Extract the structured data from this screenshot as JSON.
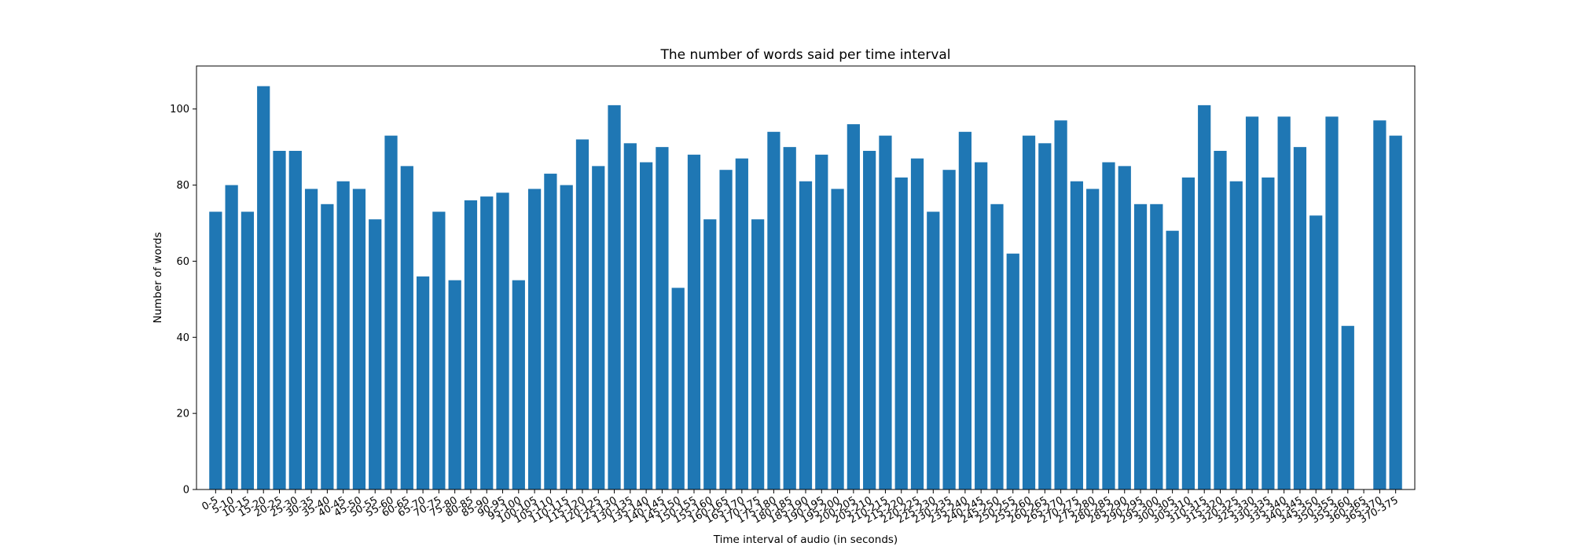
{
  "chart_data": {
    "type": "bar",
    "title": "The number of words said per time interval",
    "xlabel": "Time interval of audio (in seconds)",
    "ylabel": "Number of words",
    "ylim": [
      0,
      111.3
    ],
    "yticks": [
      0,
      20,
      40,
      60,
      80,
      100
    ],
    "grid": false,
    "bar_color": "#1f77b4",
    "categories": [
      "0-5",
      "5-10",
      "10-15",
      "15-20",
      "20-25",
      "25-30",
      "30-35",
      "35-40",
      "40-45",
      "45-50",
      "50-55",
      "55-60",
      "60-65",
      "65-70",
      "70-75",
      "75-80",
      "80-85",
      "85-90",
      "90-95",
      "95-100",
      "100-105",
      "105-110",
      "110-115",
      "115-120",
      "120-125",
      "125-130",
      "130-135",
      "135-140",
      "140-145",
      "145-150",
      "150-155",
      "155-160",
      "160-165",
      "165-170",
      "170-175",
      "175-180",
      "180-185",
      "185-190",
      "190-195",
      "195-200",
      "200-205",
      "205-210",
      "210-215",
      "215-220",
      "220-225",
      "225-230",
      "230-235",
      "235-240",
      "240-245",
      "245-250",
      "250-255",
      "255-260",
      "260-265",
      "265-270",
      "270-275",
      "275-280",
      "280-285",
      "285-290",
      "290-295",
      "295-300",
      "300-305",
      "305-310",
      "310-315",
      "315-320",
      "320-325",
      "325-330",
      "330-335",
      "335-340",
      "340-345",
      "345-350",
      "350-355",
      "355-360",
      "360-365",
      "365-370",
      "370-375"
    ],
    "values": [
      73,
      80,
      73,
      106,
      89,
      89,
      79,
      75,
      81,
      79,
      71,
      93,
      85,
      56,
      73,
      55,
      76,
      77,
      78,
      55,
      79,
      83,
      80,
      92,
      85,
      101,
      91,
      86,
      90,
      53,
      88,
      71,
      84,
      87,
      71,
      94,
      90,
      81,
      88,
      79,
      96,
      89,
      93,
      82,
      87,
      73,
      84,
      94,
      86,
      75,
      62,
      93,
      91,
      97,
      81,
      79,
      86,
      85,
      75,
      75,
      68,
      82,
      101,
      89,
      81,
      98,
      82,
      98,
      90,
      72,
      98,
      43,
      0,
      97,
      93
    ]
  }
}
